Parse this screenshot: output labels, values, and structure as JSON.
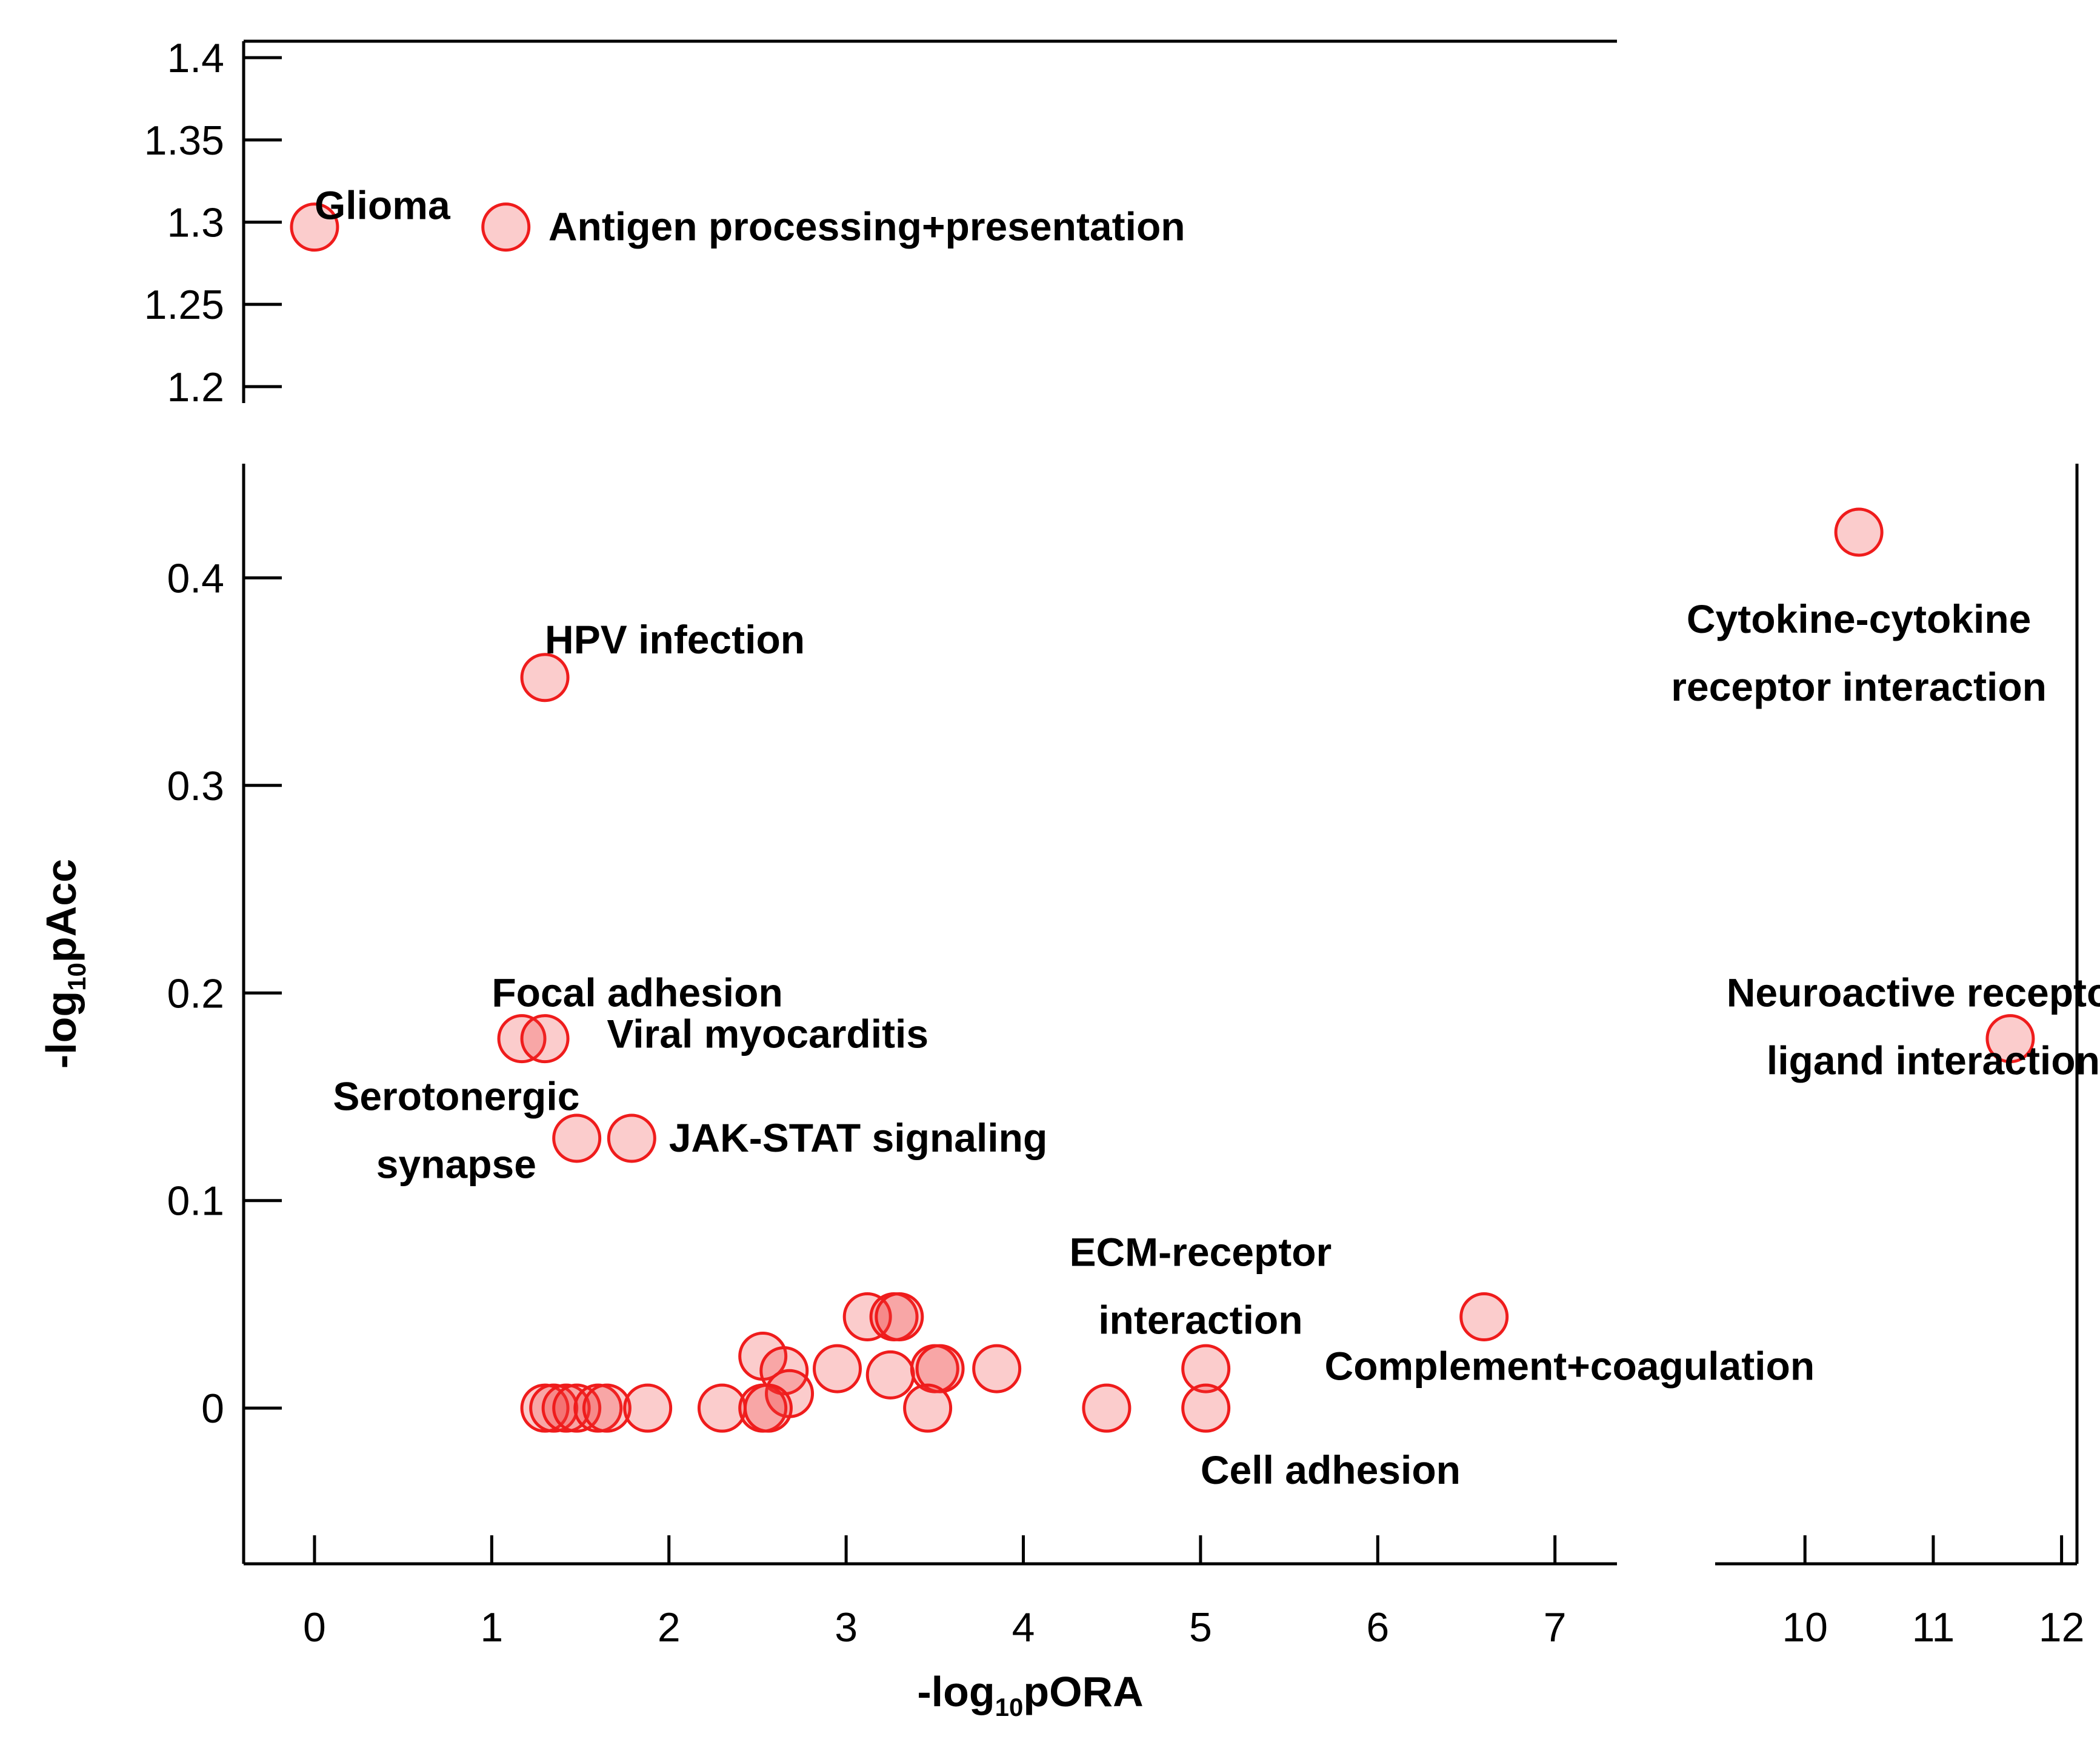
{
  "chart_data": {
    "type": "scatter",
    "title": "",
    "xlabel": {
      "prefix": "-log",
      "sub": "10",
      "suffix": "pORA"
    },
    "ylabel": {
      "prefix": "-log",
      "sub": "10",
      "suffix": "pAcc"
    },
    "x_segments": [
      {
        "range": [
          -0.4,
          7.35
        ],
        "ticks": [
          0,
          1,
          2,
          3,
          4,
          5,
          6,
          7
        ]
      },
      {
        "range": [
          9.3,
          12.12
        ],
        "ticks": [
          10,
          11,
          12
        ]
      }
    ],
    "y_segments": [
      {
        "range": [
          -0.075,
          0.455
        ],
        "ticks": [
          0,
          0.1,
          0.2,
          0.3,
          0.4
        ],
        "tick_labels": [
          "0",
          "0.1",
          "0.2",
          "0.3",
          "0.4"
        ]
      },
      {
        "range": [
          1.19,
          1.41
        ],
        "ticks": [
          1.2,
          1.25,
          1.3,
          1.35,
          1.4
        ],
        "tick_labels": [
          "1.2",
          "1.25",
          "1.3",
          "1.35",
          "1.4"
        ]
      }
    ],
    "points": [
      {
        "x": 0.0,
        "y": 1.297
      },
      {
        "x": 1.08,
        "y": 1.297
      },
      {
        "x": 10.42,
        "y": 0.422
      },
      {
        "x": 1.3,
        "y": 0.352
      },
      {
        "x": 1.17,
        "y": 0.178
      },
      {
        "x": 1.3,
        "y": 0.178
      },
      {
        "x": 11.6,
        "y": 0.178
      },
      {
        "x": 1.48,
        "y": 0.13
      },
      {
        "x": 1.79,
        "y": 0.13
      },
      {
        "x": 3.12,
        "y": 0.044
      },
      {
        "x": 3.27,
        "y": 0.044
      },
      {
        "x": 3.3,
        "y": 0.044
      },
      {
        "x": 6.6,
        "y": 0.044
      },
      {
        "x": 2.53,
        "y": 0.025
      },
      {
        "x": 2.65,
        "y": 0.018
      },
      {
        "x": 2.95,
        "y": 0.019
      },
      {
        "x": 3.25,
        "y": 0.016
      },
      {
        "x": 3.5,
        "y": 0.019
      },
      {
        "x": 3.53,
        "y": 0.019
      },
      {
        "x": 3.85,
        "y": 0.019
      },
      {
        "x": 5.03,
        "y": 0.019
      },
      {
        "x": 2.68,
        "y": 0.007
      },
      {
        "x": 1.3,
        "y": 0.0
      },
      {
        "x": 1.35,
        "y": 0.0
      },
      {
        "x": 1.42,
        "y": 0.0
      },
      {
        "x": 1.48,
        "y": 0.0
      },
      {
        "x": 1.6,
        "y": 0.0
      },
      {
        "x": 1.65,
        "y": 0.0
      },
      {
        "x": 1.88,
        "y": 0.0
      },
      {
        "x": 2.3,
        "y": 0.0
      },
      {
        "x": 2.53,
        "y": 0.0
      },
      {
        "x": 2.56,
        "y": 0.0
      },
      {
        "x": 3.46,
        "y": 0.0
      },
      {
        "x": 4.47,
        "y": 0.0
      },
      {
        "x": 5.03,
        "y": 0.0
      }
    ],
    "annotations": [
      {
        "text": "Glioma",
        "x": 0.0,
        "y": 1.31,
        "anchor": "start",
        "lines": [
          "Glioma"
        ]
      },
      {
        "text": "Antigen processing+presentation",
        "x": 1.32,
        "y": 1.297,
        "anchor": "start",
        "lines": [
          "Antigen processing+presentation"
        ]
      },
      {
        "text": "Cytokine-cytokine receptor interaction",
        "x": 10.42,
        "y": 0.38,
        "anchor": "middle",
        "lines": [
          "Cytokine-cytokine",
          "receptor interaction"
        ]
      },
      {
        "text": "HPV infection",
        "x": 1.3,
        "y": 0.37,
        "anchor": "start",
        "lines": [
          "HPV infection"
        ]
      },
      {
        "text": "Focal adhesion",
        "x": 1.0,
        "y": 0.2,
        "anchor": "start",
        "lines": [
          "Focal adhesion"
        ]
      },
      {
        "text": "Viral myocarditis",
        "x": 1.65,
        "y": 0.18,
        "anchor": "start",
        "lines": [
          "Viral myocarditis"
        ]
      },
      {
        "text": "Neuroactive receptor-ligand interaction",
        "x": 11.0,
        "y": 0.2,
        "anchor": "middle",
        "lines": [
          "Neuroactive receptor-",
          "ligand interaction"
        ]
      },
      {
        "text": "Serotonergic synapse",
        "x": 0.8,
        "y": 0.15,
        "anchor": "middle",
        "lines": [
          "Serotonergic",
          "synapse"
        ]
      },
      {
        "text": "JAK-STAT signaling",
        "x": 2.0,
        "y": 0.13,
        "anchor": "start",
        "lines": [
          "JAK-STAT signaling"
        ]
      },
      {
        "text": "ECM-receptor interaction",
        "x": 5.0,
        "y": 0.075,
        "anchor": "middle",
        "lines": [
          "ECM-receptor",
          "interaction"
        ]
      },
      {
        "text": "Complement+coagulation",
        "x": 5.7,
        "y": 0.02,
        "anchor": "start",
        "lines": [
          "Complement+coagulation"
        ]
      },
      {
        "text": "Cell adhesion",
        "x": 5.0,
        "y": -0.03,
        "anchor": "start",
        "lines": [
          "Cell adhesion"
        ]
      }
    ],
    "grid": false,
    "legend": "none",
    "colors": {
      "point_fill": "#f7c6c6",
      "point_edge": "#ef1c1c"
    }
  }
}
